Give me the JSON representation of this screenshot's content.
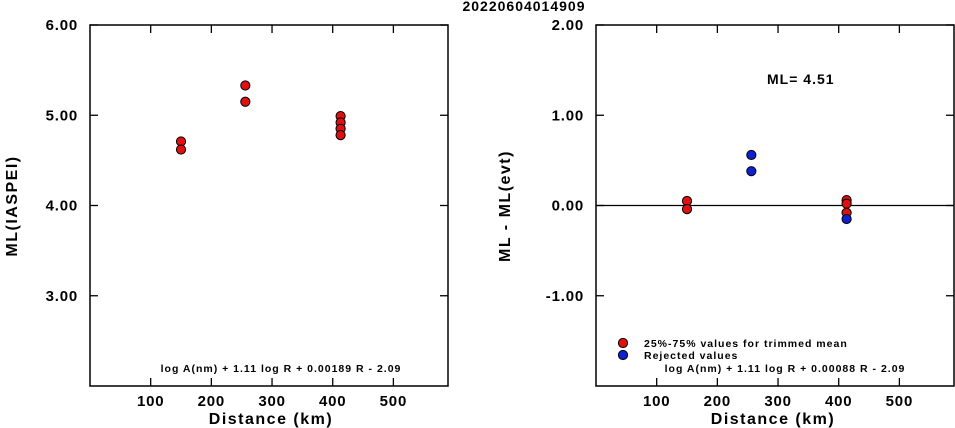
{
  "title": "20220604014909",
  "chart_data": [
    {
      "type": "scatter",
      "xlabel": "Distance (km)",
      "ylabel": "ML(IASPEI)",
      "xlim": [
        0,
        590
      ],
      "ylim": [
        2.0,
        6.0
      ],
      "xticks": [
        "100",
        "200",
        "300",
        "400",
        "500"
      ],
      "xtick_values": [
        100,
        200,
        300,
        400,
        500
      ],
      "yticks": [
        "6.00",
        "5.00",
        "4.00",
        "3.00"
      ],
      "ytick_values": [
        6.0,
        5.0,
        4.0,
        3.0
      ],
      "points": [
        {
          "x": 150,
          "y": 4.71,
          "color": "#e01010"
        },
        {
          "x": 150,
          "y": 4.62,
          "color": "#e01010"
        },
        {
          "x": 256,
          "y": 5.33,
          "color": "#e01010"
        },
        {
          "x": 256,
          "y": 5.15,
          "color": "#e01010"
        },
        {
          "x": 413,
          "y": 4.99,
          "color": "#e01010"
        },
        {
          "x": 413,
          "y": 4.92,
          "color": "#e01010"
        },
        {
          "x": 413,
          "y": 4.85,
          "color": "#e01010"
        },
        {
          "x": 413,
          "y": 4.78,
          "color": "#e01010"
        }
      ],
      "formula": "log A(nm) + 1.11 log R + 0.00189 R - 2.09"
    },
    {
      "type": "scatter",
      "xlabel": "Distance (km)",
      "ylabel": "ML - ML(evt)",
      "xlim": [
        0,
        590
      ],
      "ylim": [
        -2.0,
        2.0
      ],
      "xticks": [
        "100",
        "200",
        "300",
        "400",
        "500"
      ],
      "xtick_values": [
        100,
        200,
        300,
        400,
        500
      ],
      "yticks": [
        "2.00",
        "1.00",
        "0.00",
        "-1.00"
      ],
      "ytick_values": [
        2.0,
        1.0,
        0.0,
        -1.0
      ],
      "reference_line": 0.0,
      "points": [
        {
          "x": 150,
          "y": 0.05,
          "color": "#e01010"
        },
        {
          "x": 150,
          "y": -0.04,
          "color": "#e01010"
        },
        {
          "x": 256,
          "y": 0.56,
          "color": "#1020d0"
        },
        {
          "x": 256,
          "y": 0.38,
          "color": "#1020d0"
        },
        {
          "x": 413,
          "y": 0.06,
          "color": "#e01010"
        },
        {
          "x": 413,
          "y": 0.02,
          "color": "#e01010"
        },
        {
          "x": 413,
          "y": -0.08,
          "color": "#e01010"
        },
        {
          "x": 413,
          "y": -0.15,
          "color": "#1020d0"
        }
      ],
      "ml_label": "ML= 4.51",
      "legend": [
        {
          "label": "25%-75% values for trimmed mean",
          "color": "#e01010"
        },
        {
          "label": "Rejected values",
          "color": "#1020d0"
        }
      ],
      "formula": "log A(nm) + 1.11 log R + 0.00088 R - 2.09"
    }
  ]
}
